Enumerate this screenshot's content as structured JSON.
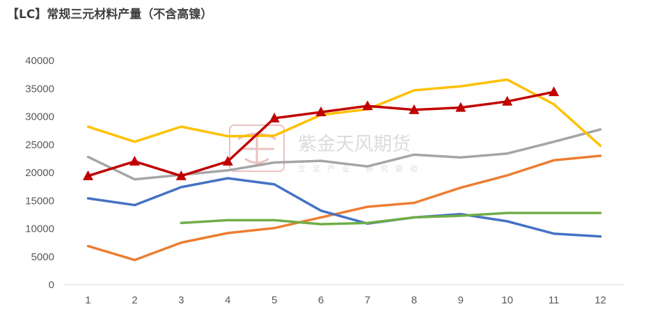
{
  "chart_data": {
    "type": "line",
    "title": "【LC】常规三元材料产量（不含高镍）",
    "x": [
      "1",
      "2",
      "3",
      "4",
      "5",
      "6",
      "7",
      "8",
      "9",
      "10",
      "11",
      "12"
    ],
    "ylim": [
      0,
      40000
    ],
    "yticks": [
      "0",
      "5000",
      "10000",
      "15000",
      "20000",
      "25000",
      "30000",
      "35000",
      "40000"
    ],
    "grid": false,
    "legend": "none",
    "series": [
      {
        "color": "#ED7D31",
        "marker": "none",
        "values": [
          6900,
          4400,
          7500,
          9200,
          10100,
          12000,
          13900,
          14600,
          17300,
          19500,
          22200,
          23000
        ]
      },
      {
        "color": "#A5A5A5",
        "marker": "none",
        "values": [
          22800,
          18800,
          19600,
          20400,
          21800,
          22100,
          21100,
          23200,
          22700,
          23400,
          25500,
          27700
        ]
      },
      {
        "color": "#FFC000",
        "marker": "none",
        "values": [
          28200,
          25500,
          28200,
          26500,
          26600,
          30300,
          31300,
          34700,
          35400,
          36600,
          32200,
          24800
        ]
      },
      {
        "color": "#4472C4",
        "marker": "none",
        "values": [
          15400,
          14200,
          17400,
          19000,
          17900,
          13200,
          10900,
          12000,
          12600,
          11300,
          9100,
          8600
        ]
      },
      {
        "color": "#70AD47",
        "marker": "none",
        "values": [
          null,
          null,
          11000,
          11500,
          11500,
          10800,
          11000,
          12000,
          12300,
          12800,
          12800,
          12800
        ]
      },
      {
        "color": "#C00000",
        "marker": "triangle",
        "values": [
          19400,
          22000,
          19400,
          22000,
          29700,
          30800,
          31900,
          31200,
          31600,
          32700,
          34400,
          null
        ]
      }
    ]
  },
  "watermark": {
    "brand": "紫金天风期货",
    "slogan": "立足产业 研究驱动"
  }
}
